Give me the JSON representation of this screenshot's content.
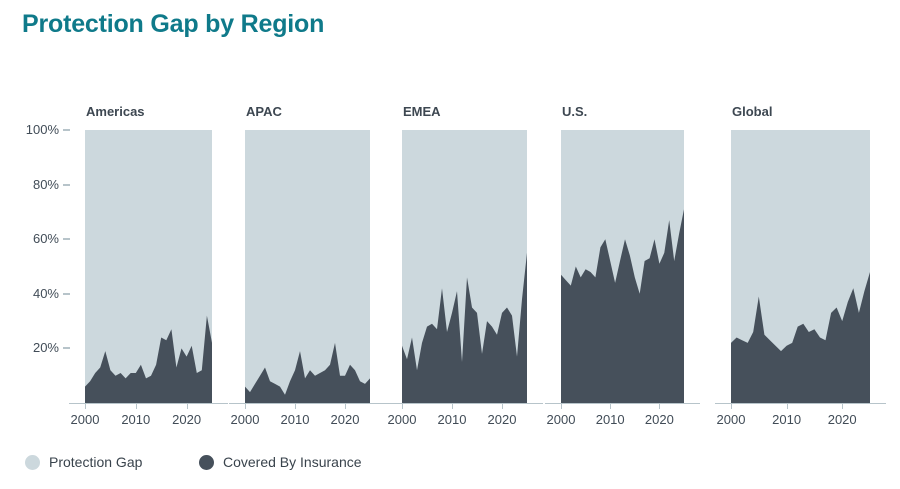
{
  "title": "Protection Gap by Region",
  "colors": {
    "title_teal": "#0f7a8a",
    "protection_gap_fill": "#ccd8dd",
    "covered_fill": "#46505b",
    "axis_line": "#b7c4ca",
    "tick_label": "#414c57",
    "subplot_title": "#3d4751",
    "legend_text": "#39434c"
  },
  "legend": {
    "items": [
      {
        "label": "Protection Gap",
        "color_key": "protection_gap_fill"
      },
      {
        "label": "Covered By Insurance",
        "color_key": "covered_fill"
      }
    ]
  },
  "chart_data": {
    "type": "area",
    "title": "Protection Gap by Region",
    "subtype": "stacked-to-100 small multiples",
    "note": "Dark lower area = Covered By Insurance (%); light upper area = Protection Gap = 100 - covered. Values estimated from pixels.",
    "x": [
      2000,
      2001,
      2002,
      2003,
      2004,
      2005,
      2006,
      2007,
      2008,
      2009,
      2010,
      2011,
      2012,
      2013,
      2014,
      2015,
      2016,
      2017,
      2018,
      2019,
      2020,
      2021,
      2022,
      2023,
      2024,
      2025
    ],
    "xticks": [
      2000,
      2010,
      2020
    ],
    "ylim": [
      0,
      100
    ],
    "yticks_pct": [
      100,
      80,
      60,
      40,
      20
    ],
    "ytick_labels": [
      "100%",
      "80%",
      "60%",
      "40%",
      "20%"
    ],
    "grid": false,
    "legend_position": "bottom-left",
    "charts": [
      {
        "region": "Americas",
        "covered_by_insurance_pct": [
          6,
          8,
          11,
          13,
          19,
          12,
          10,
          11,
          9,
          11,
          11,
          14,
          9,
          10,
          14,
          24,
          23,
          27,
          13,
          20,
          17,
          21,
          11,
          12,
          32,
          22
        ]
      },
      {
        "region": "APAC",
        "covered_by_insurance_pct": [
          6,
          4,
          7,
          10,
          13,
          8,
          7,
          6,
          3,
          8,
          12,
          19,
          9,
          12,
          10,
          11,
          12,
          14,
          22,
          10,
          10,
          14,
          12,
          8,
          7,
          9
        ]
      },
      {
        "region": "EMEA",
        "covered_by_insurance_pct": [
          21,
          16,
          24,
          12,
          22,
          28,
          29,
          27,
          42,
          26,
          33,
          41,
          15,
          46,
          35,
          33,
          18,
          30,
          28,
          25,
          33,
          35,
          32,
          17,
          38,
          55
        ]
      },
      {
        "region": "U.S.",
        "covered_by_insurance_pct": [
          47,
          45,
          43,
          50,
          46,
          49,
          48,
          46,
          57,
          60,
          52,
          44,
          52,
          60,
          54,
          46,
          40,
          52,
          53,
          60,
          51,
          55,
          67,
          52,
          62,
          71
        ]
      },
      {
        "region": "Global",
        "covered_by_insurance_pct": [
          22,
          24,
          23,
          22,
          26,
          39,
          25,
          23,
          21,
          19,
          21,
          22,
          28,
          29,
          26,
          27,
          24,
          23,
          33,
          35,
          30,
          37,
          42,
          33,
          41,
          48
        ]
      }
    ]
  }
}
